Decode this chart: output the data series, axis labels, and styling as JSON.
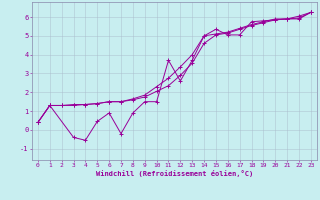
{
  "bg_color": "#c8eef0",
  "line_color": "#990099",
  "grid_color": "#aabbcc",
  "spine_color": "#8888aa",
  "xlim": [
    -0.5,
    23.5
  ],
  "ylim": [
    -1.6,
    6.8
  ],
  "xticks": [
    0,
    1,
    2,
    3,
    4,
    5,
    6,
    7,
    8,
    9,
    10,
    11,
    12,
    13,
    14,
    15,
    16,
    17,
    18,
    19,
    20,
    21,
    22,
    23
  ],
  "yticks": [
    -1,
    0,
    1,
    2,
    3,
    4,
    5,
    6
  ],
  "xlabel": "Windchill (Refroidissement éolien,°C)",
  "series1_x": [
    0,
    1,
    3,
    4,
    5,
    6,
    7,
    8,
    9,
    10,
    11,
    12,
    13,
    14,
    15,
    16,
    17,
    18,
    19,
    20,
    21,
    22,
    23
  ],
  "series1_y": [
    0.4,
    1.3,
    -0.4,
    -0.55,
    0.45,
    0.9,
    -0.2,
    0.9,
    1.5,
    1.5,
    3.7,
    2.6,
    3.7,
    5.0,
    5.35,
    5.05,
    5.05,
    5.75,
    5.8,
    5.85,
    5.9,
    5.9,
    6.25
  ],
  "series2_x": [
    0,
    1,
    2,
    3,
    4,
    5,
    6,
    7,
    8,
    9,
    10,
    11,
    12,
    13,
    14,
    15,
    16,
    17,
    18,
    19,
    20,
    21,
    22,
    23
  ],
  "series2_y": [
    0.4,
    1.3,
    1.3,
    1.3,
    1.35,
    1.4,
    1.5,
    1.5,
    1.6,
    1.75,
    2.05,
    2.35,
    2.9,
    3.55,
    4.6,
    5.05,
    5.15,
    5.35,
    5.55,
    5.7,
    5.85,
    5.9,
    5.95,
    6.25
  ],
  "series3_x": [
    0,
    1,
    2,
    3,
    4,
    5,
    6,
    7,
    8,
    9,
    10,
    11,
    12,
    13,
    14,
    15,
    16,
    17,
    18,
    19,
    20,
    21,
    22,
    23
  ],
  "series3_y": [
    0.4,
    1.3,
    1.3,
    1.35,
    1.35,
    1.4,
    1.5,
    1.5,
    1.65,
    1.85,
    2.3,
    2.75,
    3.35,
    4.0,
    5.0,
    5.1,
    5.2,
    5.4,
    5.6,
    5.75,
    5.9,
    5.9,
    6.05,
    6.25
  ]
}
